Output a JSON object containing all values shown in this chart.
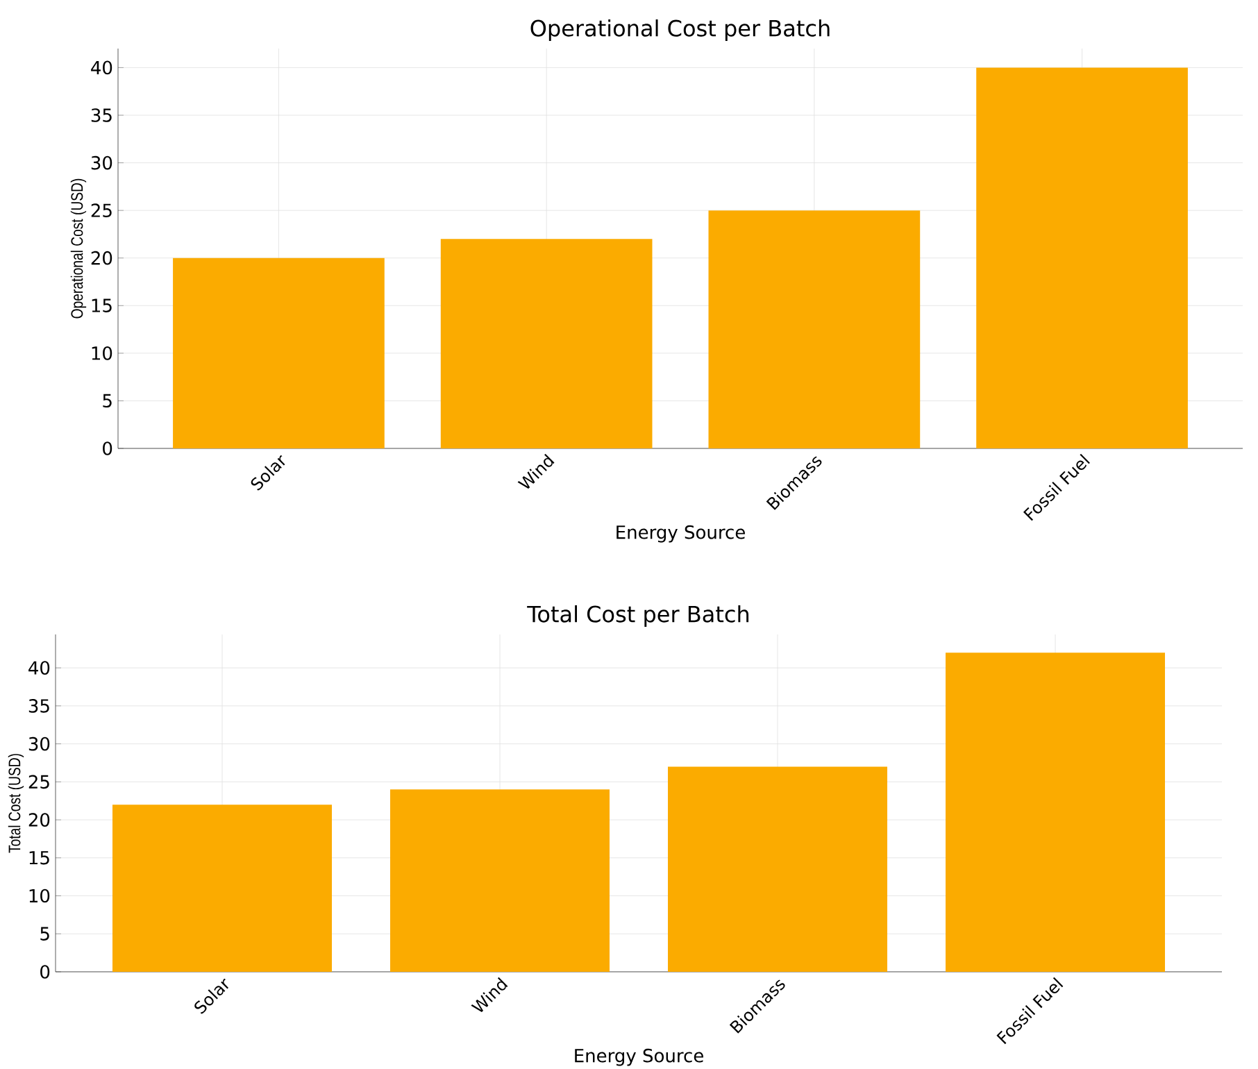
{
  "chart_data": [
    {
      "type": "bar",
      "title": "Operational Cost per Batch",
      "xlabel": "Energy Source",
      "ylabel": "Operational Cost (USD)",
      "categories": [
        "Solar",
        "Wind",
        "Biomass",
        "Fossil Fuel"
      ],
      "values": [
        20,
        22,
        25,
        40
      ],
      "color": "#fbab00",
      "ylim": [
        0,
        42
      ],
      "yticks": [
        0,
        5,
        10,
        15,
        20,
        25,
        30,
        35,
        40
      ],
      "grid": true
    },
    {
      "type": "bar",
      "title": "Total Cost per Batch",
      "xlabel": "Energy Source",
      "ylabel": "Total Cost (USD)",
      "categories": [
        "Solar",
        "Wind",
        "Biomass",
        "Fossil Fuel"
      ],
      "values": [
        22,
        24,
        27,
        42
      ],
      "color": "#fbab00",
      "ylim": [
        0,
        44.4
      ],
      "yticks": [
        0,
        5,
        10,
        15,
        20,
        25,
        30,
        35,
        40
      ],
      "grid": true
    }
  ]
}
